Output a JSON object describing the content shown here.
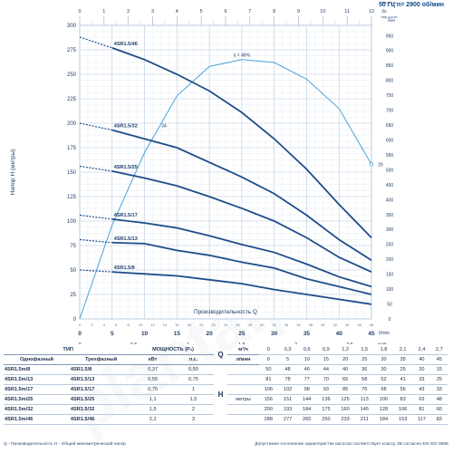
{
  "header": {
    "freq_label": "50 Гц   n= 2900 об/мин"
  },
  "chart_data": {
    "type": "line",
    "xlabel": "Производительность Q",
    "ylabel": "Напор Н (метры)",
    "x_unit_bottom": "l/min",
    "x_unit_bottom2": "m³/h",
    "x_unit_top": "l/s",
    "right_units": [
      "feet",
      "Us g.p.m.",
      "Imp g.p.m."
    ],
    "xlim": [
      0,
      45
    ],
    "ylim": [
      0,
      300
    ],
    "x_ticks": [
      0,
      5,
      10,
      15,
      20,
      25,
      30,
      35,
      40,
      45
    ],
    "x_ticks_m3h": [
      0,
      0.5,
      1,
      1.5,
      2,
      2.5
    ],
    "x_ticks_top_ls": [
      0,
      1,
      2,
      3,
      4,
      5,
      6,
      7,
      8,
      9,
      10,
      11,
      12
    ],
    "y_ticks": [
      0,
      25,
      50,
      75,
      100,
      125,
      150,
      175,
      200,
      225,
      250,
      275,
      300
    ],
    "y_ticks_right_feet": [
      0,
      50,
      100,
      150,
      200,
      250,
      300,
      350,
      400,
      450,
      500,
      550,
      600,
      650,
      700,
      750,
      800,
      850,
      900,
      950
    ],
    "series": [
      {
        "name": "4SR1.5/8",
        "x": [
          0,
          5,
          10,
          15,
          20,
          25,
          30,
          35,
          40,
          45
        ],
        "y": [
          50,
          48,
          46,
          44,
          40,
          36,
          30,
          25,
          20,
          15
        ]
      },
      {
        "name": "4SR1.5/13",
        "x": [
          0,
          5,
          10,
          15,
          20,
          25,
          30,
          35,
          40,
          45
        ],
        "y": [
          81,
          78,
          77,
          70,
          65,
          58,
          52,
          41,
          33,
          25
        ]
      },
      {
        "name": "4SR1.5/17",
        "x": [
          0,
          5,
          10,
          15,
          20,
          25,
          30,
          35,
          40,
          45
        ],
        "y": [
          106,
          102,
          98,
          93,
          85,
          76,
          68,
          56,
          43,
          33
        ]
      },
      {
        "name": "4SR1.5/25",
        "x": [
          0,
          5,
          10,
          15,
          20,
          25,
          30,
          35,
          40,
          45
        ],
        "y": [
          156,
          151,
          144,
          136,
          125,
          113,
          100,
          83,
          63,
          48
        ]
      },
      {
        "name": "4SR1.5/32",
        "x": [
          0,
          5,
          10,
          15,
          20,
          25,
          30,
          35,
          40,
          45
        ],
        "y": [
          200,
          193,
          184,
          175,
          160,
          145,
          128,
          106,
          81,
          60
        ]
      },
      {
        "name": "4SR1.5/46",
        "x": [
          0,
          5,
          10,
          15,
          20,
          25,
          30,
          35,
          40,
          45
        ],
        "y": [
          288,
          277,
          265,
          250,
          233,
          211,
          184,
          153,
          117,
          83
        ]
      }
    ],
    "efficiency": {
      "label": "η = 48%",
      "mark_low": "34",
      "mark_end": "29",
      "x": [
        0,
        5,
        10,
        15,
        20,
        25,
        30,
        35,
        40,
        45
      ],
      "y": [
        0,
        96,
        170,
        228,
        258,
        265,
        262,
        245,
        215,
        158
      ]
    }
  },
  "table": {
    "type_header": "ТИП",
    "power_header": "МОЩНОСТЬ (P₂)",
    "col_single": "Однофазный",
    "col_three": "Трехфазный",
    "col_kw": "кВт",
    "col_hp": "л.с.",
    "q_label": "Q",
    "h_label": "H",
    "h_unit": "метры",
    "unit_m3h": "м³/ч",
    "unit_lmin": "л/мин",
    "q_m3h": [
      "0",
      "0,3",
      "0,6",
      "0,9",
      "1,2",
      "1,5",
      "1,8",
      "2,1",
      "2,4",
      "2,7"
    ],
    "q_lmin": [
      "0",
      "5",
      "10",
      "15",
      "20",
      "25",
      "30",
      "35",
      "40",
      "45"
    ],
    "rows": [
      {
        "single": "4SR1.5m/8",
        "three": "4SR1.5/8",
        "kw": "0,37",
        "hp": "0,50",
        "h": [
          "50",
          "48",
          "46",
          "44",
          "40",
          "36",
          "30",
          "25",
          "20",
          "15"
        ]
      },
      {
        "single": "4SR1.5m/13",
        "three": "4SR1.5/13",
        "kw": "0,55",
        "hp": "0,75",
        "h": [
          "81",
          "78",
          "77",
          "70",
          "65",
          "58",
          "52",
          "41",
          "33",
          "25"
        ]
      },
      {
        "single": "4SR1.5m/17",
        "three": "4SR1.5/17",
        "kw": "0,75",
        "hp": "1",
        "h": [
          "106",
          "102",
          "98",
          "93",
          "85",
          "76",
          "68",
          "56",
          "43",
          "33"
        ]
      },
      {
        "single": "4SR1.5m/25",
        "three": "4SR1.5/25",
        "kw": "1,1",
        "hp": "1,5",
        "h": [
          "156",
          "151",
          "144",
          "136",
          "125",
          "113",
          "100",
          "83",
          "63",
          "48"
        ]
      },
      {
        "single": "4SR1.5m/32",
        "three": "4SR1.5/32",
        "kw": "1,5",
        "hp": "2",
        "h": [
          "200",
          "193",
          "184",
          "175",
          "160",
          "145",
          "128",
          "106",
          "81",
          "60"
        ]
      },
      {
        "single": "4SR1.5m/46",
        "three": "4SR1.5/46",
        "kw": "2,2",
        "hp": "3",
        "h": [
          "288",
          "277",
          "265",
          "250",
          "233",
          "211",
          "184",
          "153",
          "117",
          "83"
        ]
      }
    ]
  },
  "footer": {
    "left": "Q - Производительность   Н - Общий манометрический напор",
    "right": "Допустимое отклонение характеристик насосов соответствует классу 3В согласно EN ISO 9906."
  }
}
